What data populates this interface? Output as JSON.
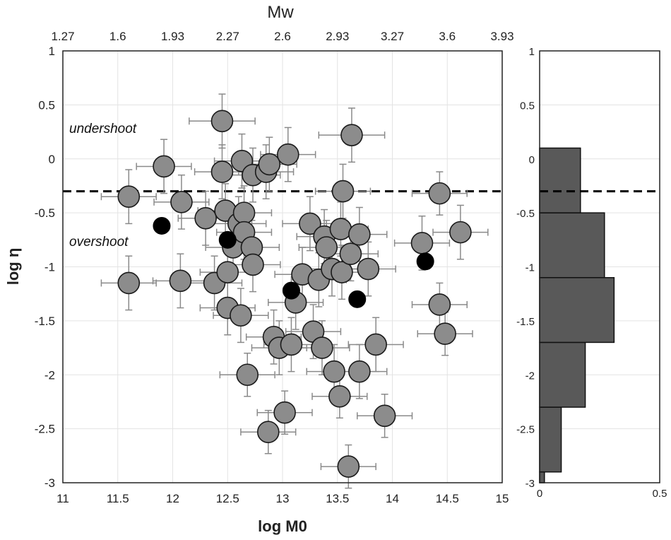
{
  "chart_data": [
    {
      "type": "scatter",
      "xlabel": "log M0",
      "ylabel": "log η",
      "top_axis_label": "Mw",
      "xlim": [
        11,
        15
      ],
      "ylim": [
        -3,
        1
      ],
      "x_ticks": [
        "11",
        "11.5",
        "12",
        "12.5",
        "13",
        "13.5",
        "14",
        "14.5",
        "15"
      ],
      "y_ticks": [
        "1",
        "0.5",
        "0",
        "-0.5",
        "-1",
        "-1.5",
        "-2",
        "-2.5",
        "-3"
      ],
      "top_ticks": [
        "1.27",
        "1.6",
        "1.93",
        "2.27",
        "2.6",
        "2.93",
        "3.27",
        "3.6",
        "3.93"
      ],
      "grid": true,
      "reference_line": {
        "y": -0.3,
        "style": "dashed"
      },
      "annotations": [
        "undershoot",
        "overshoot"
      ],
      "colors": {
        "gray_point": "#8c8c8c",
        "black_point": "#000000",
        "error_bar": "#8a8a8a"
      },
      "series": [
        {
          "name": "gray",
          "points": [
            {
              "x": 11.6,
              "y": -0.35,
              "xerr": 0.25,
              "yerr": 0.25
            },
            {
              "x": 11.6,
              "y": -1.15,
              "xerr": 0.25,
              "yerr": 0.25
            },
            {
              "x": 11.92,
              "y": -0.07,
              "xerr": 0.25,
              "yerr": 0.25
            },
            {
              "x": 12.08,
              "y": -0.4,
              "xerr": 0.25,
              "yerr": 0.25
            },
            {
              "x": 12.07,
              "y": -1.13,
              "xerr": 0.25,
              "yerr": 0.25
            },
            {
              "x": 12.3,
              "y": -0.55,
              "xerr": 0.25,
              "yerr": 0.25
            },
            {
              "x": 12.38,
              "y": -1.15,
              "xerr": 0.25,
              "yerr": 0.25
            },
            {
              "x": 12.45,
              "y": 0.35,
              "xerr": 0.3,
              "yerr": 0.25
            },
            {
              "x": 12.45,
              "y": -0.12,
              "xerr": 0.25,
              "yerr": 0.25
            },
            {
              "x": 12.48,
              "y": -0.48,
              "xerr": 0.25,
              "yerr": 0.25
            },
            {
              "x": 12.5,
              "y": -1.05,
              "xerr": 0.25,
              "yerr": 0.25
            },
            {
              "x": 12.5,
              "y": -1.38,
              "xerr": 0.25,
              "yerr": 0.25
            },
            {
              "x": 12.55,
              "y": -0.82,
              "xerr": 0.25,
              "yerr": 0.25
            },
            {
              "x": 12.6,
              "y": -0.6,
              "xerr": 0.25,
              "yerr": 0.25
            },
            {
              "x": 12.62,
              "y": -1.45,
              "xerr": 0.25,
              "yerr": 0.25
            },
            {
              "x": 12.63,
              "y": -0.02,
              "xerr": 0.25,
              "yerr": 0.25
            },
            {
              "x": 12.65,
              "y": -0.5,
              "xerr": 0.25,
              "yerr": 0.25
            },
            {
              "x": 12.65,
              "y": -0.68,
              "xerr": 0.25,
              "yerr": 0.25
            },
            {
              "x": 12.68,
              "y": -2.0,
              "xerr": 0.25,
              "yerr": 0.2
            },
            {
              "x": 12.72,
              "y": -0.82,
              "xerr": 0.25,
              "yerr": 0.25
            },
            {
              "x": 12.73,
              "y": -0.15,
              "xerr": 0.25,
              "yerr": 0.25
            },
            {
              "x": 12.73,
              "y": -0.98,
              "xerr": 0.25,
              "yerr": 0.25
            },
            {
              "x": 12.85,
              "y": -0.12,
              "xerr": 0.25,
              "yerr": 0.25
            },
            {
              "x": 12.87,
              "y": -2.53,
              "xerr": 0.25,
              "yerr": 0.2
            },
            {
              "x": 12.88,
              "y": -0.05,
              "xerr": 0.25,
              "yerr": 0.25
            },
            {
              "x": 12.92,
              "y": -1.65,
              "xerr": 0.25,
              "yerr": 0.25
            },
            {
              "x": 12.97,
              "y": -1.75,
              "xerr": 0.25,
              "yerr": 0.25
            },
            {
              "x": 13.02,
              "y": -2.35,
              "xerr": 0.25,
              "yerr": 0.2
            },
            {
              "x": 13.05,
              "y": 0.04,
              "xerr": 0.25,
              "yerr": 0.25
            },
            {
              "x": 13.08,
              "y": -1.72,
              "xerr": 0.25,
              "yerr": 0.25
            },
            {
              "x": 13.12,
              "y": -1.33,
              "xerr": 0.25,
              "yerr": 0.25
            },
            {
              "x": 13.18,
              "y": -1.07,
              "xerr": 0.25,
              "yerr": 0.25
            },
            {
              "x": 13.25,
              "y": -0.6,
              "xerr": 0.25,
              "yerr": 0.25
            },
            {
              "x": 13.28,
              "y": -1.6,
              "xerr": 0.25,
              "yerr": 0.25
            },
            {
              "x": 13.33,
              "y": -1.12,
              "xerr": 0.25,
              "yerr": 0.25
            },
            {
              "x": 13.36,
              "y": -1.75,
              "xerr": 0.25,
              "yerr": 0.25
            },
            {
              "x": 13.38,
              "y": -0.72,
              "xerr": 0.25,
              "yerr": 0.25
            },
            {
              "x": 13.4,
              "y": -0.82,
              "xerr": 0.25,
              "yerr": 0.25
            },
            {
              "x": 13.45,
              "y": -1.02,
              "xerr": 0.25,
              "yerr": 0.25
            },
            {
              "x": 13.47,
              "y": -1.97,
              "xerr": 0.25,
              "yerr": 0.25
            },
            {
              "x": 13.52,
              "y": -2.2,
              "xerr": 0.25,
              "yerr": 0.2
            },
            {
              "x": 13.53,
              "y": -0.65,
              "xerr": 0.25,
              "yerr": 0.25
            },
            {
              "x": 13.54,
              "y": -1.05,
              "xerr": 0.25,
              "yerr": 0.25
            },
            {
              "x": 13.55,
              "y": -0.3,
              "xerr": 0.25,
              "yerr": 0.25
            },
            {
              "x": 13.6,
              "y": -2.85,
              "xerr": 0.25,
              "yerr": 0.2
            },
            {
              "x": 13.62,
              "y": -0.88,
              "xerr": 0.25,
              "yerr": 0.25
            },
            {
              "x": 13.63,
              "y": 0.22,
              "xerr": 0.3,
              "yerr": 0.25
            },
            {
              "x": 13.7,
              "y": -0.7,
              "xerr": 0.25,
              "yerr": 0.25
            },
            {
              "x": 13.7,
              "y": -1.97,
              "xerr": 0.25,
              "yerr": 0.25
            },
            {
              "x": 13.78,
              "y": -1.02,
              "xerr": 0.25,
              "yerr": 0.25
            },
            {
              "x": 13.85,
              "y": -1.72,
              "xerr": 0.25,
              "yerr": 0.25
            },
            {
              "x": 13.93,
              "y": -2.38,
              "xerr": 0.25,
              "yerr": 0.2
            },
            {
              "x": 14.27,
              "y": -0.78,
              "xerr": 0.25,
              "yerr": 0.25
            },
            {
              "x": 14.43,
              "y": -0.32,
              "xerr": 0.25,
              "yerr": 0.2
            },
            {
              "x": 14.43,
              "y": -1.35,
              "xerr": 0.25,
              "yerr": 0.2
            },
            {
              "x": 14.48,
              "y": -1.62,
              "xerr": 0.25,
              "yerr": 0.2
            },
            {
              "x": 14.62,
              "y": -0.68,
              "xerr": 0.25,
              "yerr": 0.25
            }
          ]
        },
        {
          "name": "black",
          "points": [
            {
              "x": 11.9,
              "y": -0.62
            },
            {
              "x": 12.5,
              "y": -0.75
            },
            {
              "x": 13.08,
              "y": -1.22
            },
            {
              "x": 13.68,
              "y": -1.3
            },
            {
              "x": 14.3,
              "y": -0.95
            }
          ]
        }
      ]
    },
    {
      "type": "bar",
      "orientation": "horizontal",
      "xlim": [
        0,
        0.5
      ],
      "ylim": [
        -3,
        1
      ],
      "x_ticks": [
        "0",
        "0.5"
      ],
      "y_ticks": [
        "1",
        "0.5",
        "0",
        "-0.5",
        "-1",
        "-1.5",
        "-2",
        "-2.5",
        "-3"
      ],
      "reference_line": {
        "y": -0.3,
        "style": "dashed"
      },
      "bar_color": "#595959",
      "bins": [
        {
          "from": -3.0,
          "to": -2.9,
          "value": 0.02
        },
        {
          "from": -2.9,
          "to": -2.3,
          "value": 0.09
        },
        {
          "from": -2.3,
          "to": -1.7,
          "value": 0.19
        },
        {
          "from": -1.7,
          "to": -1.1,
          "value": 0.31
        },
        {
          "from": -1.1,
          "to": -0.5,
          "value": 0.27
        },
        {
          "from": -0.5,
          "to": 0.1,
          "value": 0.17
        }
      ]
    }
  ]
}
